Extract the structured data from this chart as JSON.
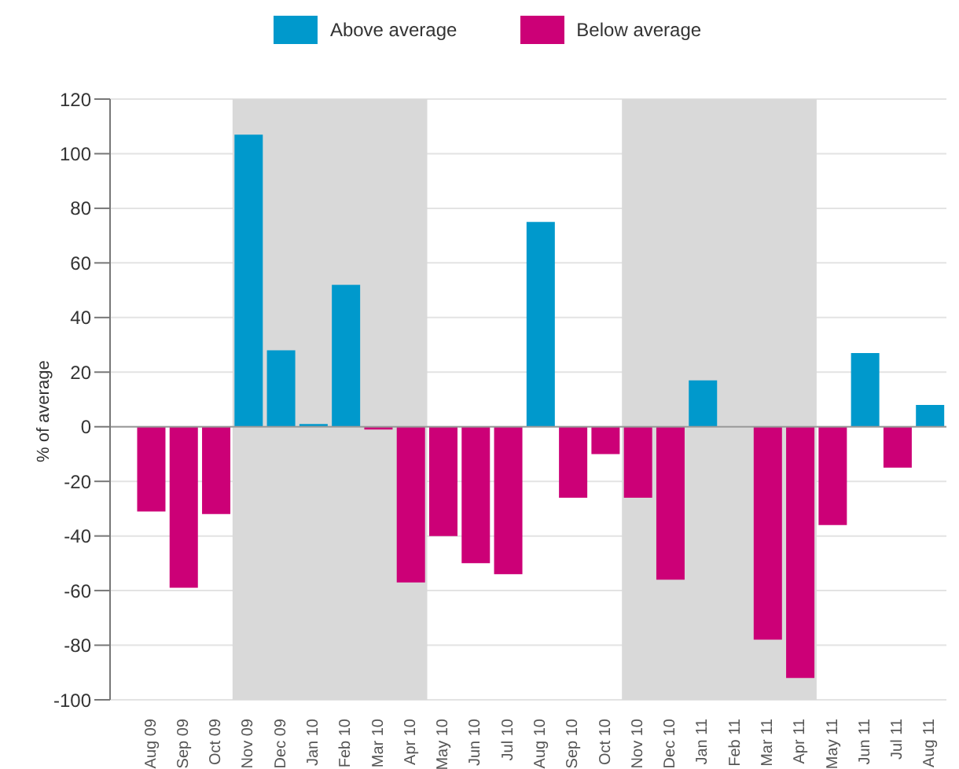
{
  "chart_data": {
    "type": "bar",
    "stacked": true,
    "ylabel": "% of average",
    "categories": [
      "Aug 09",
      "Sep 09",
      "Oct 09",
      "Nov 09",
      "Dec 09",
      "Jan 10",
      "Feb 10",
      "Mar 10",
      "Apr 10",
      "May 10",
      "Jun 10",
      "Jul 10",
      "Aug 10",
      "Sep 10",
      "Oct 10",
      "Nov 10",
      "Dec 10",
      "Jan 11",
      "Feb 11",
      "Mar 11",
      "Apr 11",
      "May 11",
      "Jun 11",
      "Jul 11",
      "Aug 11"
    ],
    "series": [
      {
        "name": "Above average",
        "color": "#0099cc",
        "values": [
          null,
          null,
          null,
          107,
          28,
          1,
          52,
          null,
          null,
          null,
          null,
          null,
          75,
          null,
          null,
          null,
          null,
          17,
          null,
          null,
          null,
          null,
          27,
          null,
          8
        ]
      },
      {
        "name": "Below average",
        "color": "#cc0077",
        "values": [
          -31,
          -59,
          -32,
          null,
          null,
          null,
          null,
          -1,
          -57,
          -40,
          -50,
          -54,
          null,
          -26,
          -10,
          -26,
          -56,
          null,
          null,
          -78,
          -92,
          -36,
          null,
          -15,
          null
        ]
      }
    ],
    "ylim": [
      -100,
      120
    ],
    "yticks": [
      -100,
      -80,
      -60,
      -40,
      -20,
      0,
      20,
      40,
      60,
      80,
      100,
      120
    ],
    "grid": "y",
    "legend": "top",
    "bands": [
      {
        "axis": "x",
        "from": "Nov 09",
        "to": "Apr 10",
        "color": "#d9d9d9"
      },
      {
        "axis": "x",
        "from": "Nov 10",
        "to": "Apr 11",
        "color": "#d9d9d9"
      }
    ]
  }
}
